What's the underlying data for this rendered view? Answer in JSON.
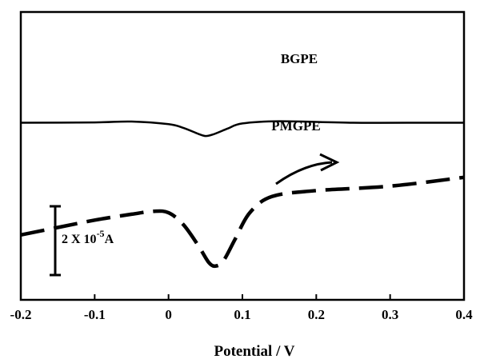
{
  "chart_data": {
    "type": "line",
    "xlabel": "Potential / V",
    "xlim": [
      -0.2,
      0.4
    ],
    "x_ticks": [
      "-0.2",
      "-0.1",
      "0",
      "0.1",
      "0.2",
      "0.3",
      "0.4"
    ],
    "y_ticks_shown": false,
    "grid": false,
    "scale_bar": {
      "value_text": "2 X 10",
      "exponent": "-5",
      "unit": "A",
      "magnitude": 2e-05
    },
    "series": [
      {
        "name": "BGPE",
        "style": "solid",
        "color": "#000000",
        "points": [
          [
            -0.2,
            -0.5
          ],
          [
            -0.1,
            -0.48
          ],
          [
            -0.05,
            -0.42
          ],
          [
            0.0,
            -0.6
          ],
          [
            0.02,
            -0.85
          ],
          [
            0.04,
            -1.25
          ],
          [
            0.05,
            -1.4
          ],
          [
            0.06,
            -1.3
          ],
          [
            0.08,
            -0.9
          ],
          [
            0.1,
            -0.55
          ],
          [
            0.15,
            -0.4
          ],
          [
            0.25,
            -0.5
          ],
          [
            0.35,
            -0.5
          ],
          [
            0.4,
            -0.5
          ]
        ]
      },
      {
        "name": "PMGPE",
        "style": "dashed",
        "color": "#000000",
        "points": [
          [
            -0.2,
            -8.1
          ],
          [
            -0.15,
            -7.6
          ],
          [
            -0.1,
            -7.1
          ],
          [
            -0.05,
            -6.7
          ],
          [
            -0.02,
            -6.5
          ],
          [
            0.0,
            -6.6
          ],
          [
            0.02,
            -7.4
          ],
          [
            0.04,
            -8.8
          ],
          [
            0.055,
            -10.0
          ],
          [
            0.065,
            -10.2
          ],
          [
            0.075,
            -9.8
          ],
          [
            0.09,
            -8.4
          ],
          [
            0.11,
            -6.6
          ],
          [
            0.14,
            -5.5
          ],
          [
            0.2,
            -5.1
          ],
          [
            0.3,
            -4.8
          ],
          [
            0.4,
            -4.2
          ]
        ]
      }
    ],
    "annotation": "arrow"
  }
}
